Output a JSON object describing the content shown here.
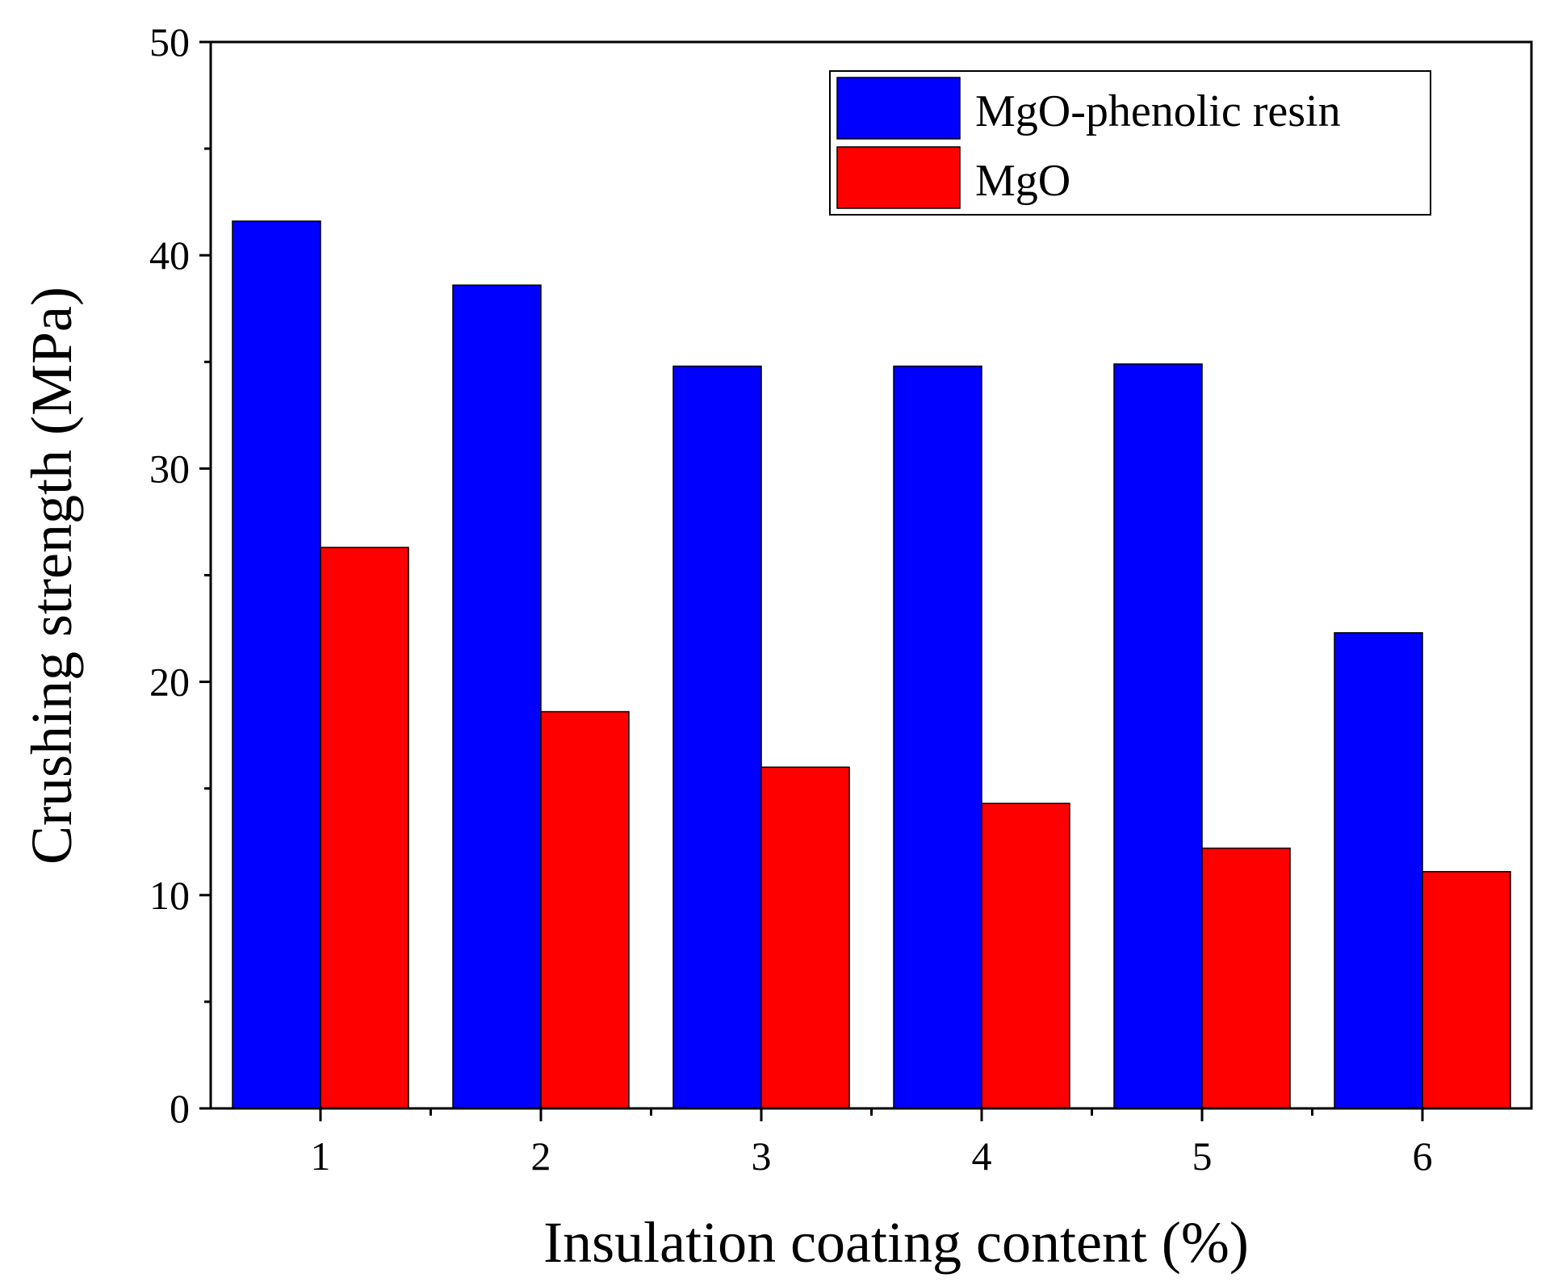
{
  "chart_data": {
    "type": "bar",
    "title": "",
    "xlabel": "Insulation coating content (%)",
    "ylabel": "Crushing strength (MPa)",
    "categories": [
      "1",
      "2",
      "3",
      "4",
      "5",
      "6"
    ],
    "series": [
      {
        "name": "MgO-phenolic resin",
        "color": "#0000ff",
        "values": [
          41.6,
          38.6,
          34.8,
          34.8,
          34.9,
          22.3
        ]
      },
      {
        "name": "MgO",
        "color": "#ff0000",
        "values": [
          26.3,
          18.6,
          16.0,
          14.3,
          12.2,
          11.1
        ]
      }
    ],
    "ylim": [
      0,
      50
    ],
    "yticks": [
      0,
      10,
      20,
      30,
      40,
      50
    ],
    "ytick_labels": [
      "0",
      "10",
      "20",
      "30",
      "40",
      "50"
    ],
    "grid": false,
    "legend_position": "top-right"
  }
}
